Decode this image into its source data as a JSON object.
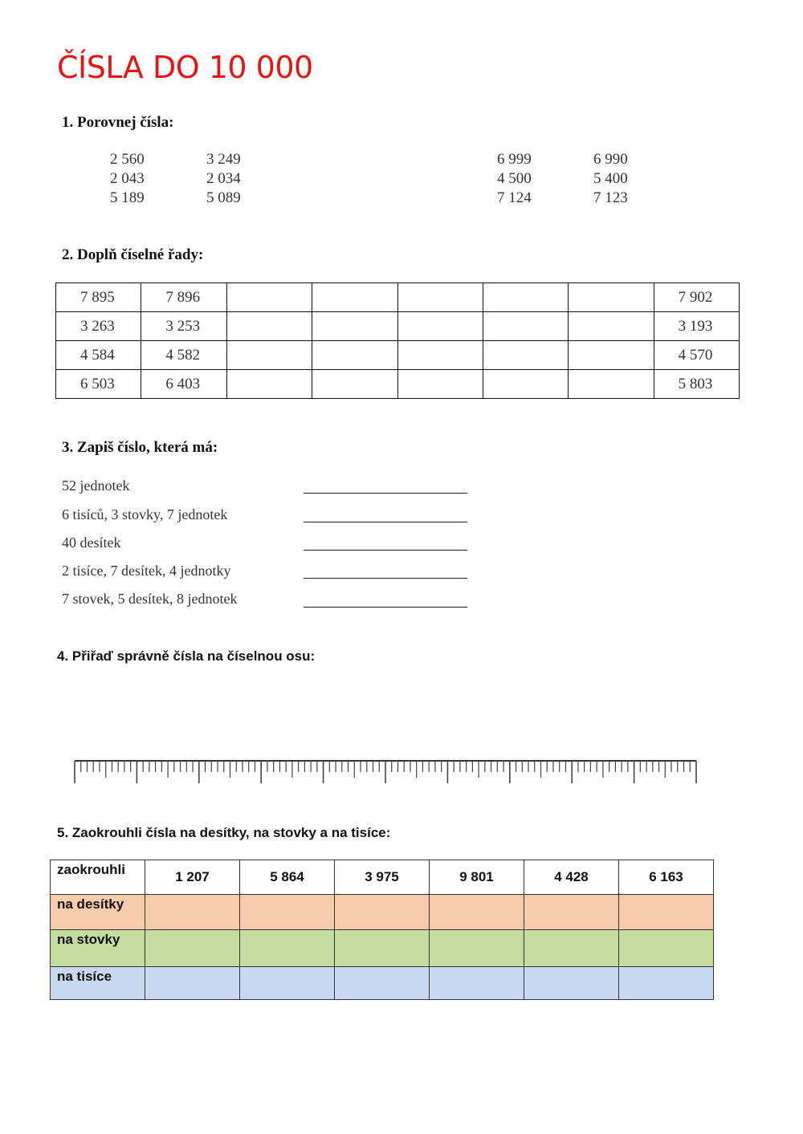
{
  "title": "ČÍSLA DO 10 000",
  "task1": {
    "heading": "1. Porovnej čísla:",
    "left": [
      [
        "2 560",
        "3 249"
      ],
      [
        "2 043",
        "2 034"
      ],
      [
        "5 189",
        "5 089"
      ]
    ],
    "right": [
      [
        "6 999",
        "6 990"
      ],
      [
        "4 500",
        "5 400"
      ],
      [
        "7 124",
        "7 123"
      ]
    ]
  },
  "task2": {
    "heading": "2. Doplň číselné řady:",
    "rows": [
      [
        "7 895",
        "7 896",
        "",
        "",
        "",
        "",
        "",
        "7 902"
      ],
      [
        "3 263",
        "3 253",
        "",
        "",
        "",
        "",
        "",
        "3 193"
      ],
      [
        "4 584",
        "4 582",
        "",
        "",
        "",
        "",
        "",
        "4 570"
      ],
      [
        "6 503",
        "6 403",
        "",
        "",
        "",
        "",
        "",
        "5 803"
      ]
    ]
  },
  "task3": {
    "heading": "3. Zapiš číslo, která má:",
    "items": [
      "52 jednotek",
      "6 tisíců, 3 stovky, 7 jednotek",
      "40 desítek",
      "2 tisíce, 7 desítek, 4 jednotky",
      "7 stovek, 5 desítek, 8 jednotek"
    ]
  },
  "task4": {
    "heading": "4. Přiřaď správně čísla na číselnou osu:",
    "ruler_intervals": 100
  },
  "task5": {
    "heading": "5. Zaokrouhli čísla na desítky, na stovky a na tisíce:",
    "corner": "zaokrouhli",
    "numbers": [
      "1 207",
      "5 864",
      "3 975",
      "9 801",
      "4 428",
      "6 163"
    ],
    "rows": [
      {
        "label": "na desítky",
        "color": "#f8cbad"
      },
      {
        "label": "na stovky",
        "color": "#c5dc9f"
      },
      {
        "label": "na tisíce",
        "color": "#c6d9f0"
      }
    ]
  }
}
